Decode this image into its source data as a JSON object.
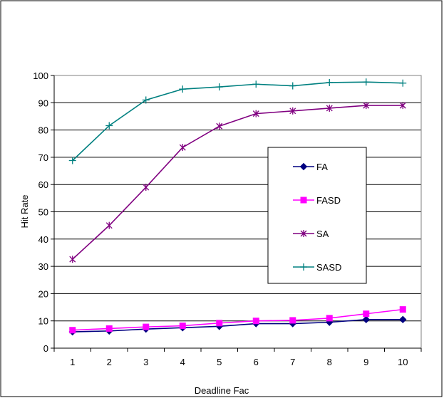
{
  "chart_data": {
    "type": "line",
    "title": "",
    "xlabel": "Deadline Fac",
    "ylabel": "Hit Rate",
    "categories": [
      "1",
      "2",
      "3",
      "4",
      "5",
      "6",
      "7",
      "8",
      "9",
      "10"
    ],
    "yticks": [
      "0",
      "10",
      "20",
      "30",
      "40",
      "50",
      "60",
      "70",
      "80",
      "90",
      "100"
    ],
    "ylim": [
      0,
      100
    ],
    "grid": true,
    "legend_position": "right",
    "series": [
      {
        "name": "FA",
        "color": "#000080",
        "marker": "diamond",
        "values": [
          6.0,
          6.3,
          7.0,
          7.5,
          8.0,
          9.0,
          9.0,
          9.5,
          10.5,
          10.5
        ]
      },
      {
        "name": "FASD",
        "color": "#ff00ff",
        "marker": "square",
        "values": [
          6.6,
          7.2,
          7.8,
          8.2,
          9.2,
          10.0,
          10.2,
          11.0,
          12.6,
          14.2
        ]
      },
      {
        "name": "SA",
        "color": "#800080",
        "marker": "asterisk",
        "values": [
          32.6,
          45.0,
          59.0,
          73.6,
          81.4,
          86.0,
          87.0,
          88.0,
          89.0,
          89.0
        ]
      },
      {
        "name": "SASD",
        "color": "#008080",
        "marker": "plus",
        "values": [
          68.8,
          81.6,
          91.0,
          95.0,
          95.8,
          96.8,
          96.2,
          97.4,
          97.6,
          97.2
        ]
      }
    ]
  }
}
